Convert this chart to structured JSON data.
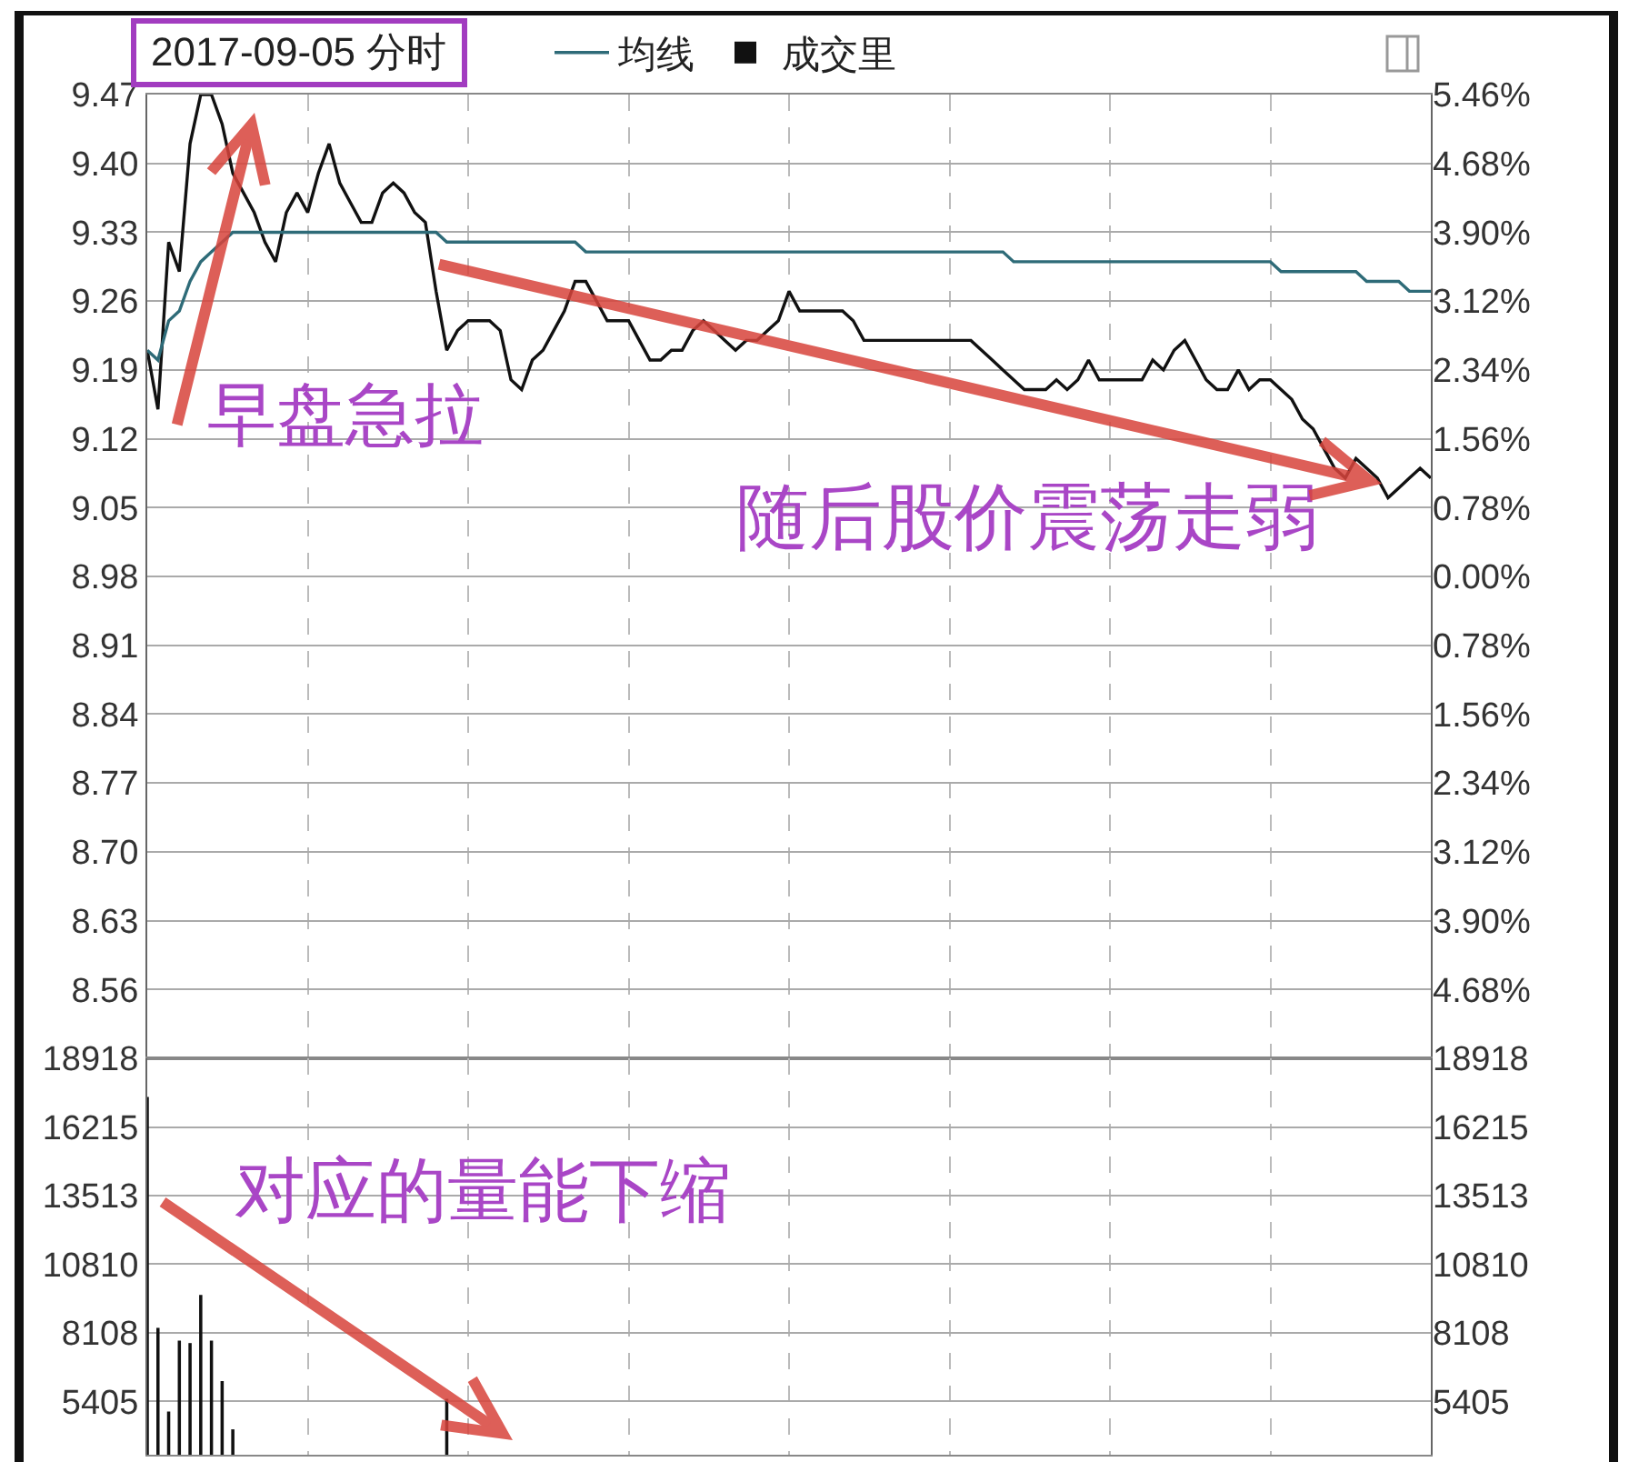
{
  "chart_data": [
    {
      "type": "line",
      "title": "2017-09-05 分时",
      "legend": "top",
      "grid": true,
      "tick_labels": "y",
      "categories": [
        null,
        null,
        null,
        null,
        null,
        null,
        null,
        null,
        null,
        null,
        null,
        null,
        null,
        null,
        null,
        null,
        null,
        null,
        null,
        null,
        null,
        null,
        null,
        null,
        null,
        null,
        null,
        null,
        null,
        null,
        null,
        null,
        null,
        null,
        null,
        null,
        null,
        null,
        null,
        null,
        null,
        null,
        null,
        null,
        null,
        null,
        null,
        null,
        null,
        null,
        null,
        null,
        null,
        null,
        null,
        null,
        null,
        null,
        null,
        null,
        null,
        null,
        null,
        null,
        null,
        null,
        null,
        null,
        null,
        null,
        null,
        null,
        null,
        null,
        null,
        null,
        null,
        null,
        null,
        null,
        null,
        null,
        null,
        null,
        null,
        null,
        null,
        null,
        null,
        null,
        null,
        null,
        null,
        null,
        null,
        null,
        null,
        null,
        null,
        null,
        null,
        null,
        null,
        null,
        null,
        null,
        null,
        null,
        null,
        null,
        null,
        null,
        null,
        null,
        null,
        null,
        null,
        null,
        null,
        null,
        null
      ],
      "ylim": [
        8.49,
        9.47
      ],
      "yticks": [
        9.47,
        {
          "value": 9.4,
          "label": "9.40"
        },
        9.33,
        9.26,
        9.19,
        9.12,
        9.05,
        8.98,
        8.91,
        8.84,
        8.77,
        {
          "value": 8.7,
          "label": "8.70"
        },
        8.63,
        8.56
      ],
      "y2lim": [
        -5.46,
        5.46
      ],
      "y2ticks": [
        {
          "value": 5.46,
          "label": "5.46%"
        },
        {
          "value": 4.68,
          "label": "4.68%"
        },
        {
          "value": 3.9,
          "label": "3.90%"
        },
        {
          "value": 3.12,
          "label": "3.12%"
        },
        {
          "value": 2.34,
          "label": "2.34%"
        },
        {
          "value": 1.56,
          "label": "1.56%"
        },
        {
          "value": 0.78,
          "label": "0.78%"
        },
        {
          "value": 0,
          "label": "0.00%"
        },
        {
          "value": -0.78,
          "label": "0.78%"
        },
        {
          "value": -1.56,
          "label": "1.56%"
        },
        {
          "value": -2.34,
          "label": "2.34%"
        },
        {
          "value": -3.12,
          "label": "3.12%"
        },
        {
          "value": -3.9,
          "label": "3.90%"
        },
        {
          "value": -4.68,
          "label": "4.68%"
        }
      ],
      "series": [
        {
          "color": "#111111",
          "values": [
            9.21,
            9.15,
            9.32,
            9.29,
            9.42,
            9.47,
            9.47,
            9.44,
            9.39,
            9.37,
            9.35,
            9.32,
            9.3,
            9.35,
            9.37,
            9.35,
            9.39,
            9.42,
            9.38,
            9.36,
            9.34,
            9.34,
            9.37,
            9.38,
            9.37,
            9.35,
            9.34,
            9.27,
            9.21,
            9.23,
            9.24,
            9.24,
            9.24,
            9.23,
            9.18,
            9.17,
            9.2,
            9.21,
            9.23,
            9.25,
            9.28,
            9.28,
            9.26,
            9.24,
            9.24,
            9.24,
            9.22,
            9.2,
            9.2,
            9.21,
            9.21,
            9.23,
            9.24,
            9.23,
            9.22,
            9.21,
            9.22,
            9.22,
            9.23,
            9.24,
            9.27,
            9.25,
            9.25,
            9.25,
            9.25,
            9.25,
            9.24,
            9.22,
            9.22,
            9.22,
            9.22,
            9.22,
            9.22,
            9.22,
            9.22,
            9.22,
            9.22,
            9.22,
            9.21,
            9.2,
            9.19,
            9.18,
            9.17,
            9.17,
            9.17,
            9.18,
            9.17,
            9.18,
            9.2,
            9.18,
            9.18,
            9.18,
            9.18,
            9.18,
            9.2,
            9.19,
            9.21,
            9.22,
            9.2,
            9.18,
            9.17,
            9.17,
            9.19,
            9.17,
            9.18,
            9.18,
            9.17,
            9.16,
            9.14,
            9.13,
            9.11,
            9.09,
            9.08,
            9.1,
            9.09,
            9.08,
            9.06,
            9.07,
            9.08,
            9.09,
            9.08
          ]
        },
        {
          "name": "均线",
          "color": "#2e6b78",
          "values": [
            9.21,
            9.2,
            9.24,
            9.25,
            9.28,
            9.3,
            9.31,
            9.32,
            9.33,
            9.33,
            9.33,
            9.33,
            9.33,
            9.33,
            9.33,
            9.33,
            9.33,
            9.33,
            9.33,
            9.33,
            9.33,
            9.33,
            9.33,
            9.33,
            9.33,
            9.33,
            9.33,
            9.33,
            9.32,
            9.32,
            9.32,
            9.32,
            9.32,
            9.32,
            9.32,
            9.32,
            9.32,
            9.32,
            9.32,
            9.32,
            9.32,
            9.31,
            9.31,
            9.31,
            9.31,
            9.31,
            9.31,
            9.31,
            9.31,
            9.31,
            9.31,
            9.31,
            9.31,
            9.31,
            9.31,
            9.31,
            9.31,
            9.31,
            9.31,
            9.31,
            9.31,
            9.31,
            9.31,
            9.31,
            9.31,
            9.31,
            9.31,
            9.31,
            9.31,
            9.31,
            9.31,
            9.31,
            9.31,
            9.31,
            9.31,
            9.31,
            9.31,
            9.31,
            9.31,
            9.31,
            9.31,
            9.3,
            9.3,
            9.3,
            9.3,
            9.3,
            9.3,
            9.3,
            9.3,
            9.3,
            9.3,
            9.3,
            9.3,
            9.3,
            9.3,
            9.3,
            9.3,
            9.3,
            9.3,
            9.3,
            9.3,
            9.3,
            9.3,
            9.3,
            9.3,
            9.3,
            9.29,
            9.29,
            9.29,
            9.29,
            9.29,
            9.29,
            9.29,
            9.29,
            9.28,
            9.28,
            9.28,
            9.28,
            9.27,
            9.27,
            9.27
          ]
        }
      ],
      "annotations": [
        "早盘急拉",
        "随后股价震荡走弱"
      ]
    },
    {
      "type": "bar",
      "legend": "top",
      "grid": true,
      "tick_labels": "y",
      "categories": [
        null,
        null,
        null,
        null,
        null,
        null,
        null,
        null,
        null,
        null,
        null,
        null,
        null,
        null,
        null,
        null,
        null,
        null,
        null,
        null,
        null,
        null,
        null,
        null,
        null,
        null,
        null,
        null,
        null,
        null,
        null,
        null,
        null,
        null,
        null,
        null,
        null,
        null,
        null,
        null,
        null,
        null,
        null,
        null,
        null,
        null,
        null,
        null,
        null,
        null,
        null,
        null,
        null,
        null,
        null,
        null,
        null,
        null,
        null,
        null,
        null,
        null,
        null,
        null,
        null,
        null,
        null,
        null,
        null,
        null,
        null,
        null,
        null,
        null,
        null,
        null,
        null,
        null,
        null,
        null,
        null,
        null,
        null,
        null,
        null,
        null,
        null,
        null,
        null,
        null,
        null,
        null,
        null,
        null,
        null,
        null,
        null,
        null,
        null,
        null,
        null,
        null,
        null,
        null,
        null,
        null,
        null,
        null,
        null,
        null,
        null,
        null,
        null,
        null,
        null,
        null,
        null,
        null,
        null,
        null,
        null
      ],
      "ylim": [
        3300,
        18918
      ],
      "yticks": [
        18918,
        16215,
        13513,
        10810,
        8108,
        5405
      ],
      "y2lim": [
        3300,
        18918
      ],
      "y2ticks": [
        18918,
        16215,
        13513,
        10810,
        8108,
        5405
      ],
      "series": [
        {
          "name": "成交里",
          "color": "#111111",
          "values": [
            17400,
            8300,
            5000,
            7800,
            7700,
            9600,
            7800,
            6200,
            4300,
            null,
            null,
            null,
            null,
            null,
            null,
            null,
            null,
            null,
            null,
            null,
            null,
            null,
            null,
            null,
            null,
            null,
            null,
            null,
            5500,
            null,
            null,
            null,
            null,
            null,
            null,
            null,
            null,
            null,
            null,
            null,
            null,
            null,
            null,
            null,
            null,
            null,
            null,
            null,
            null,
            null,
            null,
            null,
            null,
            null,
            null,
            null,
            null,
            null,
            null,
            null,
            null,
            null,
            null,
            null,
            null,
            null,
            null,
            null,
            null,
            null,
            null,
            null,
            null,
            null,
            null,
            null,
            null,
            null,
            null,
            null,
            null,
            null,
            null,
            null,
            null,
            null,
            null,
            null,
            null,
            null,
            null,
            null,
            null,
            null,
            null,
            null,
            null,
            null,
            null,
            null,
            null,
            null,
            null,
            null,
            null,
            null,
            null,
            null,
            null,
            null,
            null,
            null,
            null,
            null,
            null,
            null,
            null,
            null,
            null,
            null,
            null
          ]
        }
      ],
      "annotations": [
        "对应的量能下缩"
      ]
    }
  ]
}
